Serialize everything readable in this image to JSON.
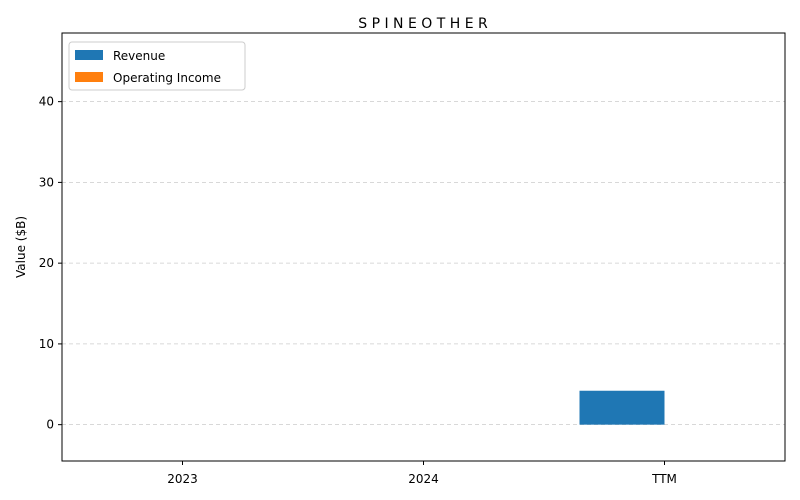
{
  "chart_data": {
    "type": "bar",
    "title": "S P I N E O T H E R",
    "xlabel": "",
    "ylabel": "Value ($B)",
    "categories": [
      "2023",
      "2024",
      "TTM"
    ],
    "series": [
      {
        "name": "Revenue",
        "color": "#1f77b4",
        "values": [
          0,
          0,
          4.2
        ]
      },
      {
        "name": "Operating Income",
        "color": "#ff7f0e",
        "values": [
          0,
          0,
          0
        ]
      }
    ],
    "ylim": [
      -4.5,
      48.5
    ],
    "yticks": [
      0,
      10,
      20,
      30,
      40
    ],
    "grid": true,
    "legend": "top-left"
  }
}
